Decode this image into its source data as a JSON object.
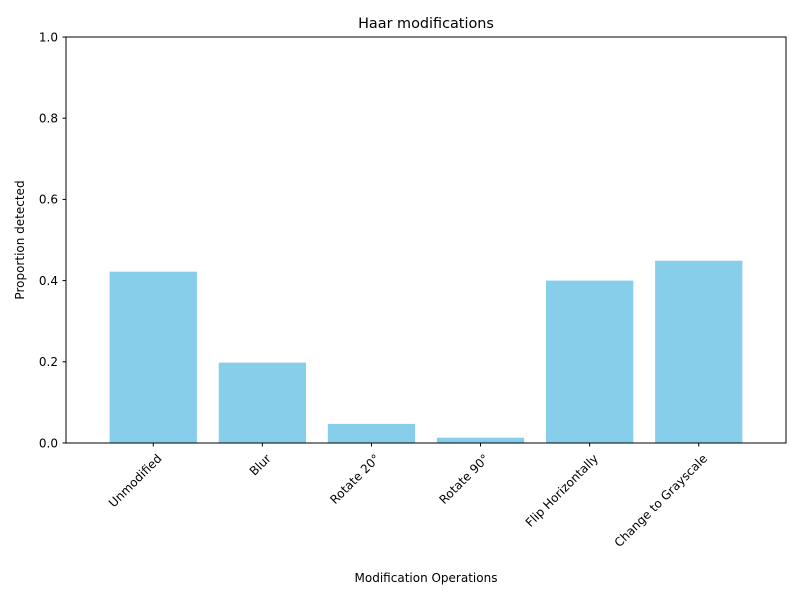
{
  "chart_data": {
    "type": "bar",
    "title": "Haar modifications",
    "xlabel": "Modification Operations",
    "ylabel": "Proportion detected",
    "categories": [
      "Unmodified",
      "Blur",
      "Rotate 20°",
      "Rotate 90°",
      "Flip Horizontally",
      "Change to Grayscale"
    ],
    "values": [
      0.422,
      0.198,
      0.047,
      0.013,
      0.4,
      0.449
    ],
    "ylim": [
      0,
      1.0
    ],
    "yticks": [
      "0.0",
      "0.2",
      "0.4",
      "0.6",
      "0.8",
      "1.0"
    ],
    "bar_color": "#87CEEB",
    "grid": false,
    "legend": "none"
  }
}
